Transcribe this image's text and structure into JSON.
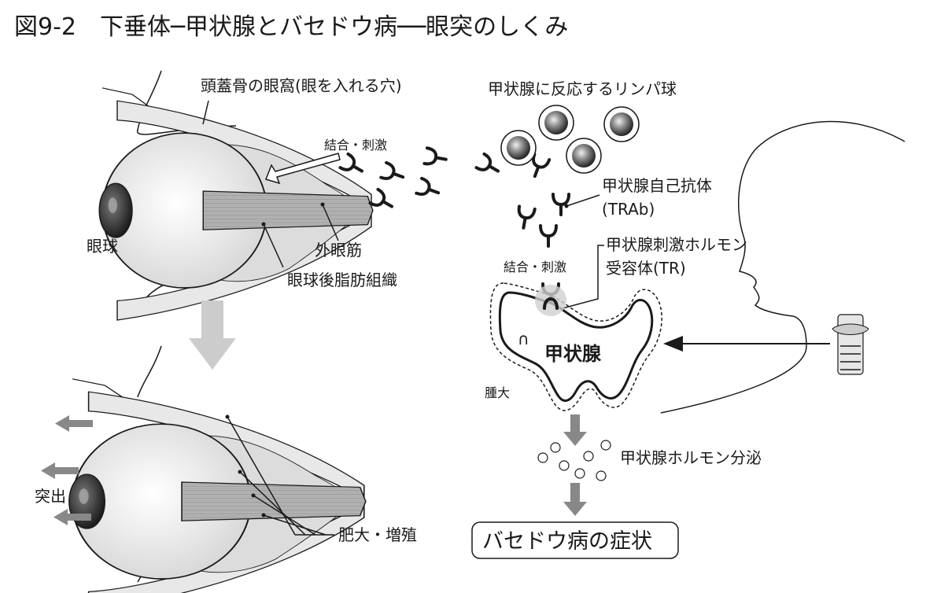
{
  "title": "図9-2　下垂体─甲状腺とバセドウ病──眼突のしくみ",
  "labels": {
    "orbit": "頭蓋骨の眼窩(眼を入れる穴)",
    "bind_stim_top": "結合・刺激",
    "eyeball": "眼球",
    "extraocular_muscle": "外眼筋",
    "retrobulbar_fat": "眼球後脂肪組織",
    "lymphocytes": "甲状腺に反応するリンパ球",
    "autoantibody_line1": "甲状腺自己抗体",
    "autoantibody_line2": "(TRAb)",
    "receptor_line1": "甲状腺刺激ホルモン",
    "receptor_line2": "受容体(TR)",
    "bind_stim_gland": "結合・刺激",
    "thyroid": "甲状腺",
    "receptor_symbol": "∩",
    "goiter": "腫大",
    "hormone_secretion": "甲状腺ホルモン分泌",
    "protrusion": "突出",
    "hypertrophy": "肥大・増殖",
    "basedow_symptoms": "バセドウ病の症状"
  },
  "colors": {
    "ink": "#1a1a1a",
    "gray_arrow": "#888888",
    "light_arrow": "#cccccc",
    "muscle": "#b0b0b0",
    "fat": "#dcdcdc",
    "iris": "#3a3a3a"
  },
  "icons": [
    "eyeball-icon",
    "antibody-icon",
    "lymphocyte-icon",
    "larynx-icon",
    "head-profile-icon",
    "thyroid-gland-icon"
  ]
}
